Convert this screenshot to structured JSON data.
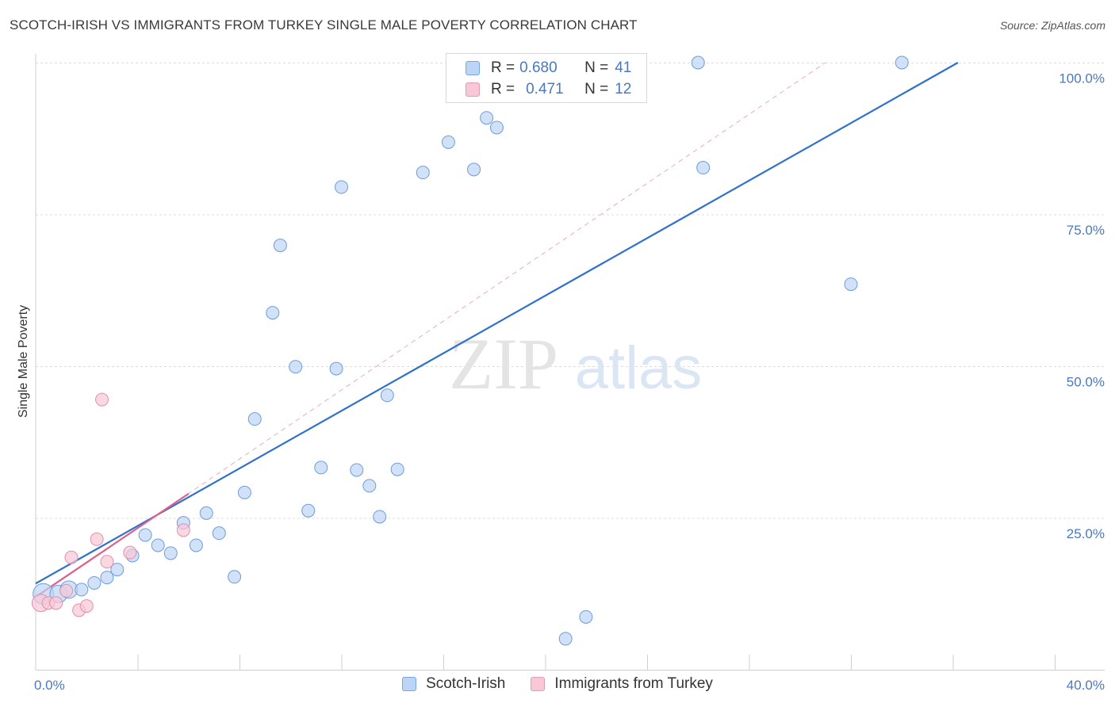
{
  "title": "SCOTCH-IRISH VS IMMIGRANTS FROM TURKEY SINGLE MALE POVERTY CORRELATION CHART",
  "source": "Source: ZipAtlas.com",
  "watermark": {
    "part1": "ZIP",
    "part2": "atlas"
  },
  "legend": {
    "rows": [
      {
        "r_label": "R =",
        "r_value": "0.680",
        "n_label": "N =",
        "n_value": "41",
        "color_fill": "#bcd4f5",
        "color_stroke": "#7aa6e0"
      },
      {
        "r_label": "R =",
        "r_value": "0.471",
        "n_label": "N =",
        "n_value": "12",
        "color_fill": "#f8c8d6",
        "color_stroke": "#e89ab2"
      }
    ]
  },
  "bottom_legend": [
    {
      "label": "Scotch-Irish",
      "color_fill": "#bcd4f5",
      "color_stroke": "#7aa6e0"
    },
    {
      "label": "Immigrants from Turkey",
      "color_fill": "#f8c8d6",
      "color_stroke": "#e89ab2"
    }
  ],
  "chart_data": {
    "type": "scatter",
    "title": "SCOTCH-IRISH VS IMMIGRANTS FROM TURKEY SINGLE MALE POVERTY CORRELATION CHART",
    "xlabel": "",
    "ylabel": "Single Male Poverty",
    "xlim": [
      0,
      40
    ],
    "ylim": [
      0,
      100
    ],
    "x_tick_labels": [
      "0.0%",
      "40.0%"
    ],
    "y_ticks": [
      25,
      50,
      75,
      100
    ],
    "y_tick_labels": [
      "25.0%",
      "50.0%",
      "75.0%",
      "100.0%"
    ],
    "series": [
      {
        "name": "Scotch-Irish",
        "color": "#4a86d6",
        "fill": "#bcd4f5",
        "points": [
          [
            0.3,
            12.5
          ],
          [
            0.9,
            12.5
          ],
          [
            1.3,
            13.2
          ],
          [
            1.8,
            13.2
          ],
          [
            2.3,
            14.3
          ],
          [
            2.8,
            15.2
          ],
          [
            3.2,
            16.5
          ],
          [
            3.8,
            18.8
          ],
          [
            4.3,
            22.2
          ],
          [
            4.8,
            20.5
          ],
          [
            5.3,
            19.2
          ],
          [
            5.8,
            24.2
          ],
          [
            6.3,
            20.5
          ],
          [
            6.7,
            25.8
          ],
          [
            7.2,
            22.5
          ],
          [
            7.8,
            15.3
          ],
          [
            8.2,
            29.2
          ],
          [
            8.6,
            41.3
          ],
          [
            9.3,
            58.8
          ],
          [
            9.6,
            69.9
          ],
          [
            10.2,
            49.9
          ],
          [
            10.7,
            26.2
          ],
          [
            11.2,
            33.3
          ],
          [
            11.8,
            49.6
          ],
          [
            12.0,
            79.5
          ],
          [
            12.6,
            32.9
          ],
          [
            13.1,
            30.3
          ],
          [
            13.5,
            25.2
          ],
          [
            13.8,
            45.2
          ],
          [
            14.2,
            33.0
          ],
          [
            15.2,
            81.9
          ],
          [
            16.2,
            86.9
          ],
          [
            17.2,
            82.4
          ],
          [
            17.7,
            90.9
          ],
          [
            18.1,
            89.3
          ],
          [
            20.8,
            5.1
          ],
          [
            21.6,
            8.7
          ],
          [
            26.0,
            100.0
          ],
          [
            26.2,
            82.7
          ],
          [
            32.0,
            63.5
          ],
          [
            34.0,
            100.0
          ]
        ],
        "trend": {
          "x": [
            0,
            36.2
          ],
          "y": [
            14.2,
            100.0
          ]
        }
      },
      {
        "name": "Immigrants from Turkey",
        "color": "#e0608a",
        "fill": "#f8c8d6",
        "points": [
          [
            0.2,
            11.0
          ],
          [
            0.5,
            11.0
          ],
          [
            0.8,
            11.0
          ],
          [
            1.2,
            13.0
          ],
          [
            1.4,
            18.5
          ],
          [
            1.7,
            9.8
          ],
          [
            2.0,
            10.5
          ],
          [
            2.4,
            21.5
          ],
          [
            2.6,
            44.5
          ],
          [
            2.8,
            17.8
          ],
          [
            3.7,
            19.3
          ],
          [
            5.8,
            23.0
          ]
        ],
        "trend": {
          "x": [
            0,
            6.0
          ],
          "y": [
            12.0,
            29.0
          ]
        },
        "trend_extended": {
          "x": [
            0,
            31.0
          ],
          "y": [
            12.0,
            100.0
          ]
        }
      }
    ]
  }
}
